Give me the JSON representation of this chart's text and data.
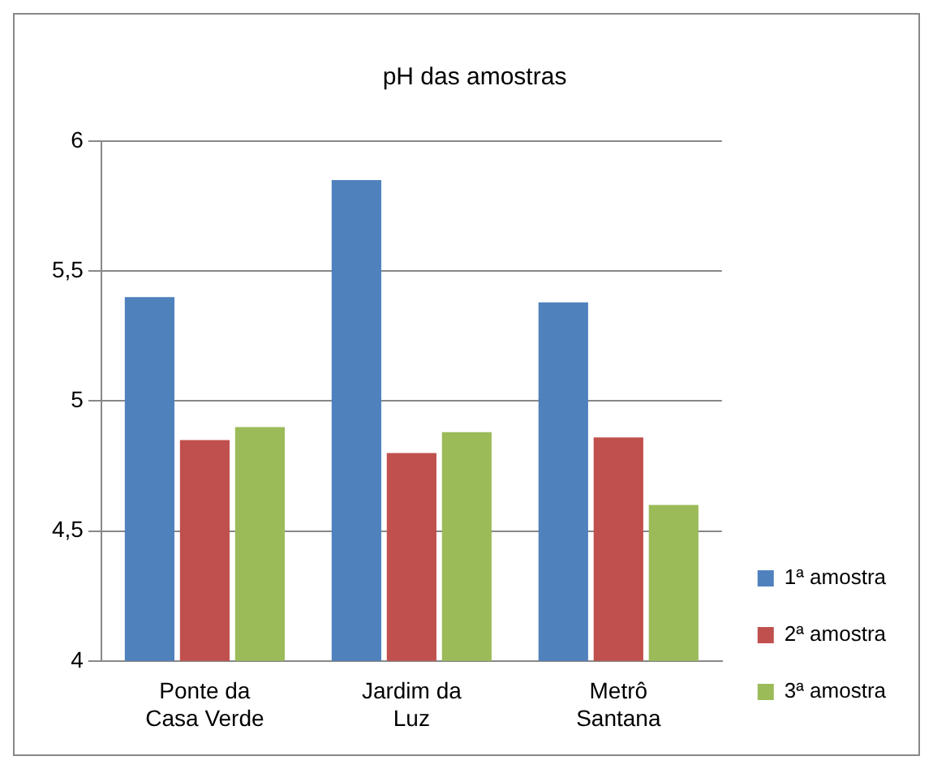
{
  "chart_data": {
    "type": "bar",
    "title": "pH das amostras",
    "categories": [
      "Ponte da Casa Verde",
      "Jardim da Luz",
      "Metrô Santana"
    ],
    "series": [
      {
        "name": "1ª amostra",
        "color": "#4f81bd",
        "values": [
          5.4,
          5.85,
          5.38
        ]
      },
      {
        "name": "2ª amostra",
        "color": "#c0504d",
        "values": [
          4.85,
          4.8,
          4.86
        ]
      },
      {
        "name": "3ª amostra",
        "color": "#9bbb59",
        "values": [
          4.9,
          4.88,
          4.6
        ]
      }
    ],
    "ylim": [
      4,
      6
    ],
    "yticks": [
      {
        "value": 4,
        "label": "4"
      },
      {
        "value": 4.5,
        "label": "4,5"
      },
      {
        "value": 5,
        "label": "5"
      },
      {
        "value": 5.5,
        "label": "5,5"
      },
      {
        "value": 6,
        "label": "6"
      }
    ],
    "grid": "y",
    "legend": "right"
  }
}
